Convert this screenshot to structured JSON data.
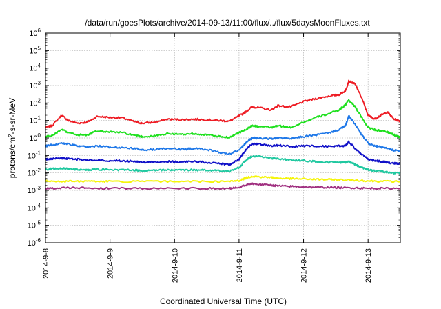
{
  "chart_data": {
    "type": "line",
    "title": "/data/run/goesPlots/archive/2014-09-13/11:00/flux/../flux/5daysMoonFluxes.txt",
    "xlabel": "Coordinated Universal Time (UTC)",
    "ylabel_parts": {
      "pre": "protons/cm",
      "sup": "2",
      "post": "-s-sr-MeV"
    },
    "x_ticks": [
      "2014-9-8",
      "2014-9-9",
      "2014-9-10",
      "2014-9-11",
      "2014-9-12",
      "2014-9-13"
    ],
    "x_range_days": [
      0,
      5.5
    ],
    "y_scale": "log",
    "y_range": [
      1e-06,
      1000000.0
    ],
    "y_ticks": [
      {
        "base": "10",
        "exp": "-6"
      },
      {
        "base": "10",
        "exp": "-5"
      },
      {
        "base": "10",
        "exp": "-4"
      },
      {
        "base": "10",
        "exp": "-3"
      },
      {
        "base": "10",
        "exp": "-2"
      },
      {
        "base": "10",
        "exp": "-1"
      },
      {
        "base": "10",
        "exp": "0"
      },
      {
        "base": "10",
        "exp": "1"
      },
      {
        "base": "10",
        "exp": "2"
      },
      {
        "base": "10",
        "exp": "3"
      },
      {
        "base": "10",
        "exp": "4"
      },
      {
        "base": "10",
        "exp": "5"
      },
      {
        "base": "10",
        "exp": "6"
      }
    ],
    "grid": true,
    "series": [
      {
        "color": "#ee1c24",
        "x": [
          0,
          0.1,
          0.25,
          0.35,
          0.5,
          0.65,
          0.8,
          1.0,
          1.2,
          1.4,
          1.5,
          1.7,
          1.9,
          2.1,
          2.3,
          2.5,
          2.7,
          2.85,
          3.0,
          3.1,
          3.2,
          3.3,
          3.5,
          3.6,
          3.8,
          4.0,
          4.2,
          4.4,
          4.55,
          4.65,
          4.7,
          4.8,
          4.9,
          5.0,
          5.1,
          5.2,
          5.3,
          5.4,
          5.5
        ],
        "y": [
          4,
          5,
          20,
          10,
          7,
          8,
          17,
          15,
          14,
          8,
          7,
          8,
          12,
          11,
          12,
          11,
          10,
          9,
          18,
          30,
          60,
          55,
          40,
          70,
          60,
          120,
          180,
          250,
          300,
          500,
          1800,
          1200,
          200,
          20,
          12,
          20,
          30,
          12,
          9
        ]
      },
      {
        "color": "#1fe01f",
        "x": [
          0,
          0.1,
          0.25,
          0.35,
          0.5,
          0.65,
          0.8,
          1.0,
          1.2,
          1.4,
          1.5,
          1.7,
          1.9,
          2.1,
          2.3,
          2.5,
          2.7,
          2.85,
          3.0,
          3.1,
          3.2,
          3.3,
          3.5,
          3.6,
          3.8,
          4.0,
          4.2,
          4.4,
          4.55,
          4.65,
          4.7,
          4.8,
          4.9,
          5.0,
          5.1,
          5.2,
          5.3,
          5.4,
          5.5
        ],
        "y": [
          1.2,
          1.3,
          3,
          2,
          1.5,
          1.5,
          2.5,
          2.2,
          2,
          1.3,
          1.2,
          1.3,
          1.8,
          1.6,
          1.8,
          1.5,
          1.2,
          1.1,
          2,
          3,
          5,
          4.5,
          4,
          5,
          4,
          8,
          15,
          25,
          40,
          80,
          150,
          60,
          15,
          4,
          3,
          2.5,
          2.2,
          1.5,
          1.1
        ]
      },
      {
        "color": "#1f78e8",
        "x": [
          0,
          0.1,
          0.25,
          0.35,
          0.5,
          0.65,
          0.8,
          1.0,
          1.2,
          1.4,
          1.5,
          1.7,
          1.9,
          2.1,
          2.3,
          2.5,
          2.7,
          2.85,
          3.0,
          3.1,
          3.2,
          3.3,
          3.5,
          3.6,
          3.8,
          4.0,
          4.2,
          4.4,
          4.55,
          4.65,
          4.7,
          4.8,
          4.9,
          5.0,
          5.1,
          5.2,
          5.3,
          5.4,
          5.5
        ],
        "y": [
          0.35,
          0.4,
          0.5,
          0.45,
          0.35,
          0.3,
          0.35,
          0.3,
          0.28,
          0.25,
          0.2,
          0.22,
          0.25,
          0.22,
          0.25,
          0.22,
          0.15,
          0.12,
          0.2,
          0.5,
          1,
          1,
          0.9,
          1.0,
          0.9,
          1.2,
          1.5,
          2,
          3,
          5,
          18,
          6,
          1.5,
          0.5,
          0.35,
          0.3,
          0.25,
          0.2,
          0.18
        ]
      },
      {
        "color": "#1010c8",
        "x": [
          0,
          0.1,
          0.25,
          0.35,
          0.5,
          0.65,
          0.8,
          1.0,
          1.2,
          1.4,
          1.5,
          1.7,
          1.9,
          2.1,
          2.3,
          2.5,
          2.7,
          2.85,
          3.0,
          3.1,
          3.2,
          3.3,
          3.5,
          3.6,
          3.8,
          4.0,
          4.2,
          4.4,
          4.55,
          4.65,
          4.7,
          4.8,
          4.9,
          5.0,
          5.1,
          5.2,
          5.3,
          5.4,
          5.5
        ],
        "y": [
          0.06,
          0.065,
          0.07,
          0.065,
          0.06,
          0.055,
          0.055,
          0.05,
          0.05,
          0.045,
          0.04,
          0.042,
          0.045,
          0.042,
          0.045,
          0.04,
          0.035,
          0.03,
          0.06,
          0.2,
          0.45,
          0.45,
          0.35,
          0.38,
          0.33,
          0.35,
          0.35,
          0.33,
          0.35,
          0.35,
          0.6,
          0.25,
          0.12,
          0.06,
          0.05,
          0.045,
          0.04,
          0.035,
          0.035
        ]
      },
      {
        "color": "#20c8a0",
        "x": [
          0,
          0.1,
          0.25,
          0.35,
          0.5,
          0.65,
          0.8,
          1.0,
          1.2,
          1.4,
          1.5,
          1.7,
          1.9,
          2.1,
          2.3,
          2.5,
          2.7,
          2.85,
          3.0,
          3.1,
          3.2,
          3.3,
          3.5,
          3.6,
          3.8,
          4.0,
          4.2,
          4.4,
          4.55,
          4.65,
          4.7,
          4.8,
          4.9,
          5.0,
          5.1,
          5.2,
          5.3,
          5.4,
          5.5
        ],
        "y": [
          0.016,
          0.017,
          0.018,
          0.017,
          0.016,
          0.015,
          0.016,
          0.015,
          0.015,
          0.014,
          0.013,
          0.014,
          0.015,
          0.014,
          0.015,
          0.014,
          0.013,
          0.012,
          0.02,
          0.05,
          0.09,
          0.09,
          0.07,
          0.065,
          0.055,
          0.05,
          0.045,
          0.04,
          0.04,
          0.04,
          0.045,
          0.03,
          0.02,
          0.015,
          0.013,
          0.012,
          0.011,
          0.01,
          0.01
        ]
      },
      {
        "color": "#f5f50a",
        "x": [
          0,
          0.25,
          0.5,
          0.8,
          1.0,
          1.5,
          2.0,
          2.5,
          2.85,
          3.0,
          3.1,
          3.2,
          3.3,
          3.5,
          3.6,
          3.8,
          4.0,
          4.2,
          4.4,
          4.6,
          4.8,
          5.0,
          5.2,
          5.5
        ],
        "y": [
          0.0033,
          0.0033,
          0.0033,
          0.0033,
          0.0032,
          0.0032,
          0.0032,
          0.0032,
          0.0032,
          0.0036,
          0.005,
          0.0065,
          0.006,
          0.0055,
          0.005,
          0.0047,
          0.0045,
          0.0043,
          0.0042,
          0.004,
          0.0038,
          0.0035,
          0.0033,
          0.0032
        ]
      },
      {
        "color": "#a03080",
        "x": [
          0,
          0.25,
          0.5,
          0.8,
          1.0,
          1.5,
          2.0,
          2.5,
          2.85,
          3.0,
          3.1,
          3.2,
          3.3,
          3.5,
          3.6,
          3.8,
          4.0,
          4.2,
          4.4,
          4.6,
          4.8,
          5.0,
          5.2,
          5.5
        ],
        "y": [
          0.0013,
          0.0014,
          0.0014,
          0.0013,
          0.0013,
          0.0013,
          0.0013,
          0.0013,
          0.0013,
          0.0015,
          0.002,
          0.0025,
          0.0022,
          0.002,
          0.0018,
          0.0017,
          0.0016,
          0.0015,
          0.0015,
          0.0014,
          0.0014,
          0.0013,
          0.0013,
          0.0013
        ]
      }
    ]
  }
}
